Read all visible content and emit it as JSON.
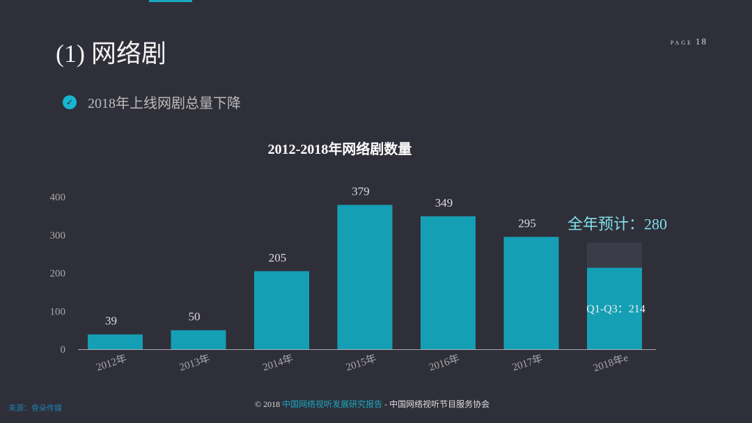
{
  "header": {
    "title": "(1) 网络剧",
    "page_label": "PAGE",
    "page_number": "18"
  },
  "bullet": {
    "icon": "check-circle-icon",
    "text": "2018年上线网剧总量下降"
  },
  "chart_data": {
    "type": "bar",
    "title": "2012-2018年网络剧数量",
    "categories": [
      "2012年",
      "2013年",
      "2014年",
      "2015年",
      "2016年",
      "2017年",
      "2018年e"
    ],
    "values": [
      39,
      50,
      205,
      379,
      349,
      295,
      214
    ],
    "data_labels": [
      "39",
      "50",
      "205",
      "379",
      "349",
      "295",
      ""
    ],
    "forecast": {
      "category": "2018年e",
      "full_year": 280,
      "full_year_label": "全年预计：280",
      "partial_label": "Q1-Q3：214"
    },
    "yticks": [
      0,
      100,
      200,
      300,
      400
    ],
    "ylim": [
      0,
      400
    ],
    "grid": false,
    "colors": {
      "bar": "#159fb5",
      "forecast": "#3b3c47",
      "accent_text": "#7fe0e8"
    }
  },
  "footer": {
    "source": "来源：骨朵传媒",
    "copyright_prefix": "© 2018 ",
    "report": "中国网络视听发展研究报告",
    "separator": " - ",
    "org": "中国网络视听节目服务协会"
  }
}
